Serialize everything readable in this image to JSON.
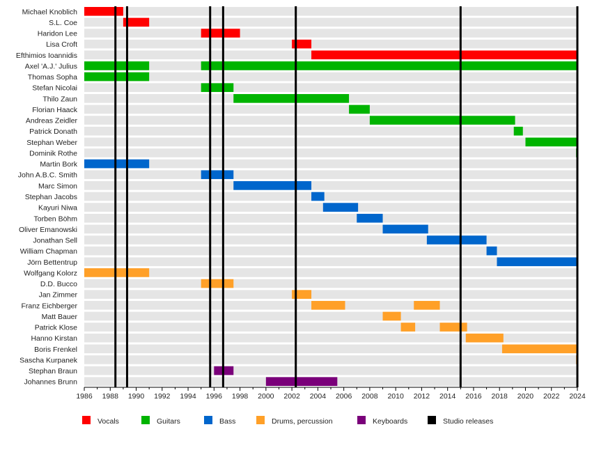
{
  "chart_data": {
    "type": "bar",
    "subtype": "timeline",
    "title": "",
    "xlabel": "",
    "ylabel": "",
    "xlim": [
      1986,
      2024
    ],
    "x_ticks": [
      "1986",
      "1988",
      "1990",
      "1992",
      "1994",
      "1996",
      "1998",
      "2000",
      "2002",
      "2004",
      "2006",
      "2008",
      "2010",
      "2012",
      "2014",
      "2016",
      "2018",
      "2020",
      "2022",
      "2024"
    ],
    "grid": false,
    "legend_position": "bottom",
    "roles": [
      {
        "key": "vocals",
        "name": "Vocals",
        "color": "#ff0000"
      },
      {
        "key": "guitars",
        "name": "Guitars",
        "color": "#00b400"
      },
      {
        "key": "bass",
        "name": "Bass",
        "color": "#0066cc"
      },
      {
        "key": "drums",
        "name": "Drums, percussion",
        "color": "#ffa028"
      },
      {
        "key": "keyboards",
        "name": "Keyboards",
        "color": "#7a007a"
      },
      {
        "key": "studio",
        "name": "Studio releases",
        "color": "#000000"
      }
    ],
    "members": [
      {
        "name": "Michael Knoblich",
        "role": "vocals",
        "periods": [
          [
            1986,
            1989
          ]
        ]
      },
      {
        "name": "S.L. Coe",
        "role": "vocals",
        "periods": [
          [
            1989,
            1991
          ]
        ]
      },
      {
        "name": "Haridon Lee",
        "role": "vocals",
        "periods": [
          [
            1995,
            1998
          ]
        ]
      },
      {
        "name": "Lisa Croft",
        "role": "vocals",
        "periods": [
          [
            2002,
            2003.5
          ]
        ]
      },
      {
        "name": "Efthimios Ioannidis",
        "role": "vocals",
        "periods": [
          [
            2003.5,
            2024
          ]
        ]
      },
      {
        "name": "Axel 'A.J.' Julius",
        "role": "guitars",
        "periods": [
          [
            1986,
            1991
          ],
          [
            1995,
            2024
          ]
        ]
      },
      {
        "name": "Thomas Sopha",
        "role": "guitars",
        "periods": [
          [
            1986,
            1991
          ]
        ]
      },
      {
        "name": "Stefan Nicolai",
        "role": "guitars",
        "periods": [
          [
            1995,
            1997.5
          ]
        ]
      },
      {
        "name": "Thilo Zaun",
        "role": "guitars",
        "periods": [
          [
            1997.5,
            2006.4
          ]
        ]
      },
      {
        "name": "Florian Haack",
        "role": "guitars",
        "periods": [
          [
            2006.4,
            2008
          ]
        ]
      },
      {
        "name": "Andreas Zeidler",
        "role": "guitars",
        "periods": [
          [
            2008,
            2019.2
          ]
        ]
      },
      {
        "name": "Patrick Donath",
        "role": "guitars",
        "periods": [
          [
            2019.1,
            2019.8
          ]
        ]
      },
      {
        "name": "Stephan Weber",
        "role": "guitars",
        "periods": [
          [
            2020,
            2024
          ]
        ]
      },
      {
        "name": "Dominik Rothe",
        "role": "guitars",
        "periods": [
          [
            2023.9,
            2024
          ]
        ]
      },
      {
        "name": "Martin Bork",
        "role": "bass",
        "periods": [
          [
            1986,
            1991
          ]
        ]
      },
      {
        "name": "John A.B.C. Smith",
        "role": "bass",
        "periods": [
          [
            1995,
            1997.5
          ]
        ]
      },
      {
        "name": "Marc Simon",
        "role": "bass",
        "periods": [
          [
            1997.5,
            2003.5
          ]
        ]
      },
      {
        "name": "Stephan Jacobs",
        "role": "bass",
        "periods": [
          [
            2003.5,
            2004.5
          ]
        ]
      },
      {
        "name": "Kayuri Niwa",
        "role": "bass",
        "periods": [
          [
            2004.4,
            2007.1
          ]
        ]
      },
      {
        "name": "Torben Böhm",
        "role": "bass",
        "periods": [
          [
            2007,
            2009
          ]
        ]
      },
      {
        "name": "Oliver Emanowski",
        "role": "bass",
        "periods": [
          [
            2009,
            2012.5
          ]
        ]
      },
      {
        "name": "Jonathan Sell",
        "role": "bass",
        "periods": [
          [
            2012.4,
            2017
          ]
        ]
      },
      {
        "name": "William Chapman",
        "role": "bass",
        "periods": [
          [
            2017,
            2017.8
          ]
        ]
      },
      {
        "name": "Jörn Bettentrup",
        "role": "bass",
        "periods": [
          [
            2017.8,
            2024
          ]
        ]
      },
      {
        "name": "Wolfgang Kolorz",
        "role": "drums",
        "periods": [
          [
            1986,
            1991
          ]
        ]
      },
      {
        "name": "D.D. Bucco",
        "role": "drums",
        "periods": [
          [
            1995,
            1997.5
          ]
        ]
      },
      {
        "name": "Jan Zimmer",
        "role": "drums",
        "periods": [
          [
            2002,
            2003.5
          ]
        ]
      },
      {
        "name": "Franz Eichberger",
        "role": "drums",
        "periods": [
          [
            2003.5,
            2006.1
          ],
          [
            2011.4,
            2013.4
          ]
        ]
      },
      {
        "name": "Matt Bauer",
        "role": "drums",
        "periods": [
          [
            2009,
            2010.4
          ]
        ]
      },
      {
        "name": "Patrick Klose",
        "role": "drums",
        "periods": [
          [
            2010.4,
            2011.5
          ],
          [
            2013.4,
            2015.5
          ]
        ]
      },
      {
        "name": "Hanno Kirstan",
        "role": "drums",
        "periods": [
          [
            2015.4,
            2018.3
          ]
        ]
      },
      {
        "name": "Boris Frenkel",
        "role": "drums",
        "periods": [
          [
            2018.2,
            2024
          ]
        ]
      },
      {
        "name": "Sascha Kurpanek",
        "role": "drums",
        "periods": [
          [
            2023.9,
            2024
          ]
        ]
      },
      {
        "name": "Stephan Braun",
        "role": "keyboards",
        "periods": [
          [
            1996,
            1997.5
          ]
        ]
      },
      {
        "name": "Johannes Brunn",
        "role": "keyboards",
        "periods": [
          [
            2000,
            2005.5
          ]
        ]
      }
    ],
    "studio_releases": [
      1988.4,
      1989.3,
      1995.7,
      1996.7,
      2002.3,
      2015.0,
      2024.0
    ]
  }
}
